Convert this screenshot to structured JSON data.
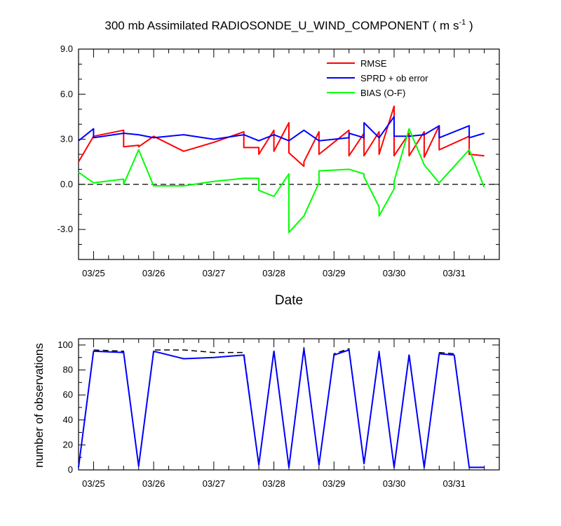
{
  "chart_data": [
    {
      "type": "line",
      "title": "300 mb Assimilated RADIOSONDE_U_WIND_COMPONENT ( m s",
      "title_sup": "-1",
      "title_end": " )",
      "xlabel": "Date",
      "ylabel": "",
      "ylim": [
        -5,
        9
      ],
      "xlim": [
        0,
        7.0
      ],
      "yticks": [
        -3,
        0,
        3,
        6,
        9
      ],
      "ytick_labels": [
        "-3.0",
        "0.0",
        "3.0",
        "6.0",
        "9.0"
      ],
      "xticks": [
        0.25,
        1.25,
        2.25,
        3.25,
        4.25,
        5.25,
        6.25
      ],
      "xtick_labels": [
        "03/25",
        "03/26",
        "03/27",
        "03/28",
        "03/29",
        "03/30",
        "03/31"
      ],
      "zero_line": "dashed",
      "legend_position": "top-right",
      "series": [
        {
          "name": "RMSE",
          "color": "#ff0000",
          "x": [
            0.0,
            0.25,
            0.75,
            0.75,
            1.0,
            1.0,
            1.25,
            1.75,
            2.25,
            2.75,
            2.75,
            3.0,
            3.0,
            3.25,
            3.25,
            3.5,
            3.5,
            3.75,
            3.75,
            4.0,
            4.0,
            4.5,
            4.5,
            4.75,
            4.75,
            5.0,
            5.0,
            5.25,
            5.25,
            5.5,
            5.5,
            5.75,
            5.75,
            6.0,
            6.0,
            6.5,
            6.5,
            6.75
          ],
          "values": [
            1.5,
            3.2,
            3.6,
            2.5,
            2.6,
            2.5,
            3.2,
            2.2,
            2.8,
            3.5,
            2.45,
            2.45,
            2.0,
            3.6,
            2.2,
            4.1,
            2.1,
            1.2,
            1.5,
            3.5,
            2.0,
            3.6,
            1.9,
            3.4,
            1.9,
            3.5,
            2.0,
            5.2,
            1.9,
            3.4,
            1.9,
            3.5,
            1.8,
            3.9,
            2.3,
            3.2,
            2.0,
            1.9
          ]
        },
        {
          "name": "SPRD + ob error",
          "color": "#0000ff",
          "x": [
            0.0,
            0.25,
            0.25,
            0.75,
            1.0,
            1.25,
            1.75,
            2.25,
            2.75,
            3.0,
            3.25,
            3.5,
            3.75,
            4.0,
            4.5,
            4.5,
            4.75,
            4.75,
            5.0,
            5.25,
            5.25,
            5.5,
            5.75,
            6.0,
            6.0,
            6.5,
            6.5,
            6.75
          ],
          "values": [
            2.9,
            3.7,
            3.1,
            3.4,
            3.3,
            3.1,
            3.3,
            3.0,
            3.3,
            2.9,
            3.3,
            2.9,
            3.6,
            2.9,
            3.1,
            3.4,
            3.1,
            4.1,
            3.1,
            4.5,
            3.2,
            3.2,
            3.3,
            3.9,
            3.1,
            3.9,
            3.1,
            3.4
          ]
        },
        {
          "name": "BIAS (O-F)",
          "color": "#00ff00",
          "x": [
            0.0,
            0.25,
            0.75,
            0.75,
            1.0,
            1.25,
            1.75,
            2.25,
            2.75,
            3.0,
            3.0,
            3.25,
            3.5,
            3.5,
            3.75,
            4.0,
            4.0,
            4.5,
            4.75,
            4.75,
            5.0,
            5.0,
            5.25,
            5.25,
            5.5,
            5.75,
            6.0,
            6.5,
            6.75
          ],
          "values": [
            0.8,
            0.1,
            0.35,
            0.0,
            2.3,
            -0.1,
            -0.1,
            0.2,
            0.4,
            0.4,
            -0.4,
            -0.8,
            0.7,
            -3.2,
            -2.1,
            0.1,
            0.9,
            1.0,
            0.7,
            0.5,
            -1.5,
            -2.1,
            -0.3,
            0.2,
            3.7,
            1.3,
            0.1,
            2.3,
            -0.2
          ]
        }
      ]
    },
    {
      "type": "line",
      "title": "",
      "xlabel": "",
      "ylabel": "number of observations",
      "ylim": [
        0,
        105
      ],
      "xlim": [
        0,
        7.0
      ],
      "yticks": [
        0,
        20,
        40,
        60,
        80,
        100
      ],
      "ytick_labels": [
        "0",
        "20",
        "40",
        "60",
        "80",
        "100"
      ],
      "xticks": [
        0.25,
        1.25,
        2.25,
        3.25,
        4.25,
        5.25,
        6.25
      ],
      "xtick_labels": [
        "03/25",
        "03/26",
        "03/27",
        "03/28",
        "03/29",
        "03/30",
        "03/31"
      ],
      "series": [
        {
          "color": "#000000",
          "dash": "dashed",
          "x": [
            0.0,
            0.25,
            0.75,
            1.0,
            1.25,
            1.75,
            2.25,
            2.75,
            3.0,
            3.25,
            3.5,
            3.75,
            4.0,
            4.25,
            4.5,
            4.75,
            5.0,
            5.25,
            5.5,
            5.75,
            6.0,
            6.25,
            6.5,
            6.75
          ],
          "values": [
            2,
            96,
            95,
            3,
            96,
            96,
            94,
            94,
            4,
            96,
            2,
            98,
            4,
            93,
            97,
            5,
            95,
            2,
            93,
            2,
            94,
            93,
            2,
            2
          ]
        },
        {
          "color": "#0000ff",
          "dash": "solid",
          "x": [
            0.0,
            0.25,
            0.75,
            1.0,
            1.25,
            1.75,
            2.25,
            2.75,
            3.0,
            3.25,
            3.5,
            3.75,
            4.0,
            4.25,
            4.5,
            4.75,
            5.0,
            5.25,
            5.5,
            5.75,
            6.0,
            6.25,
            6.5,
            6.75
          ],
          "values": [
            2,
            95,
            94,
            3,
            95,
            89,
            90,
            92,
            4,
            95,
            2,
            97,
            4,
            92,
            96,
            5,
            94,
            2,
            92,
            2,
            93,
            92,
            2,
            2
          ]
        }
      ]
    }
  ]
}
